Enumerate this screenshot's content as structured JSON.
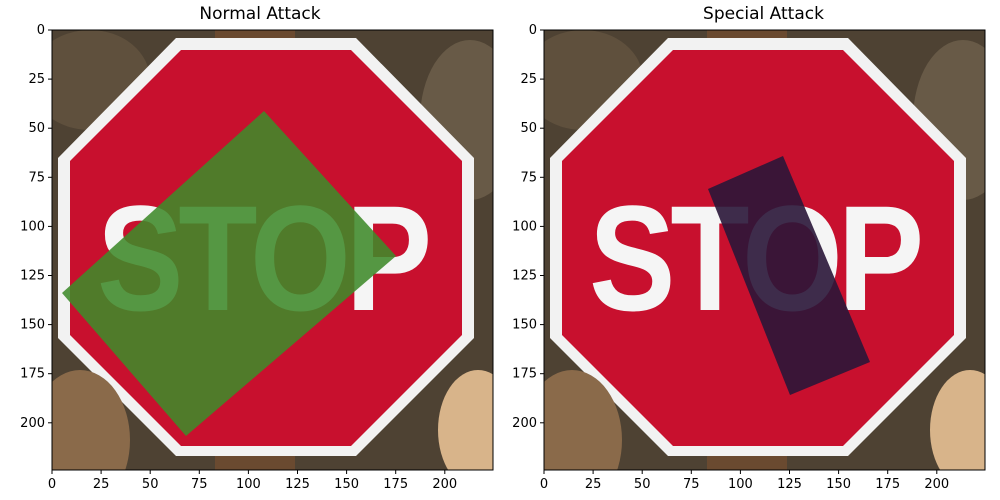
{
  "panels": [
    {
      "id": "normal",
      "title": "Normal Attack",
      "sign_text": "STOP",
      "patch_color": "#3f8a2a"
    },
    {
      "id": "special",
      "title": "Special Attack",
      "sign_text": "STOP",
      "patch_color": "#2a1638"
    }
  ],
  "axes": {
    "x_ticks": [
      "0",
      "25",
      "50",
      "75",
      "100",
      "125",
      "150",
      "175",
      "200"
    ],
    "y_ticks": [
      "0",
      "25",
      "50",
      "75",
      "100",
      "125",
      "150",
      "175",
      "200"
    ]
  },
  "colors": {
    "sign_red": "#c8102e",
    "sign_border": "#f2f2f2",
    "background": "#5a4a3a"
  }
}
